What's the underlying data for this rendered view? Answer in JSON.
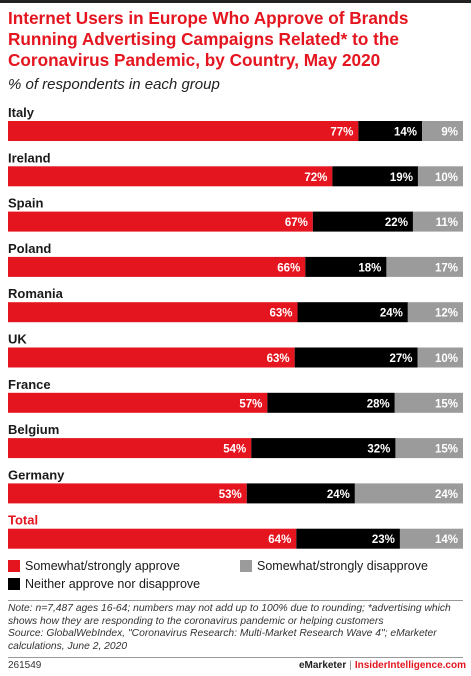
{
  "title": "Internet Users in Europe Who Approve of Brands Running Advertising Campaigns Related* to the Coronavirus Pandemic, by Country, May 2020",
  "subtitle": "% of respondents in each group",
  "colors": {
    "approve": "#e4151f",
    "neither": "#000000",
    "disapprove": "#9b9b9b",
    "total_label": "#e4151f"
  },
  "chart_data": {
    "type": "bar",
    "orientation": "horizontal",
    "stacked": true,
    "categories": [
      "Italy",
      "Ireland",
      "Spain",
      "Poland",
      "Romania",
      "UK",
      "France",
      "Belgium",
      "Germany",
      "Total"
    ],
    "series": [
      {
        "name": "Somewhat/strongly approve",
        "values": [
          77,
          72,
          67,
          66,
          63,
          63,
          57,
          54,
          53,
          64
        ]
      },
      {
        "name": "Neither approve nor disapprove",
        "values": [
          14,
          19,
          22,
          18,
          24,
          27,
          28,
          32,
          24,
          23
        ]
      },
      {
        "name": "Somewhat/strongly disapprove",
        "values": [
          9,
          10,
          11,
          17,
          12,
          10,
          15,
          15,
          24,
          14
        ]
      }
    ],
    "value_suffix": "%",
    "grid": false,
    "legend_position": "bottom"
  },
  "legend": {
    "approve": "Somewhat/strongly approve",
    "disapprove": "Somewhat/strongly disapprove",
    "neither": "Neither approve nor disapprove"
  },
  "note": "Note: n=7,487 ages 16-64; numbers may not add up to 100% due to rounding; *advertising which shows how they are responding to the coronavirus pandemic or helping customers",
  "source": "Source: GlobalWebIndex, \"Coronavirus Research: Multi-Market Research Wave 4\"; eMarketer calculations, June 2, 2020",
  "footer": {
    "id": "261549",
    "brand": "eMarketer",
    "separator": "|",
    "brand2": "InsiderIntelligence.com"
  }
}
